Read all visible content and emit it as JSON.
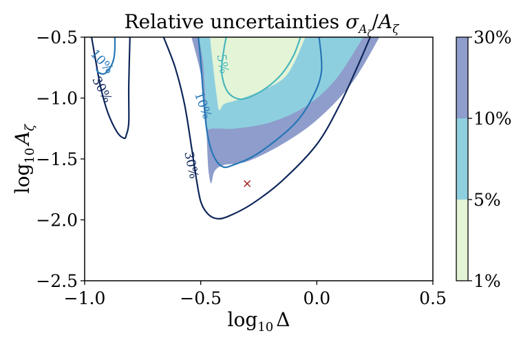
{
  "chart_data": {
    "type": "contour",
    "title": "Relative uncertainties",
    "title_math": {
      "base": "σ",
      "sub": "A",
      "subsub": "ζ",
      "sep": "/",
      "base2": "A",
      "sub2": "ζ"
    },
    "xlabel": {
      "prefix": "log",
      "sub": "10",
      "var": "Δ"
    },
    "ylabel": {
      "prefix": "log",
      "sub": "10",
      "var": "A",
      "varsub": "ζ"
    },
    "xlim": [
      -1.0,
      0.5
    ],
    "ylim": [
      -2.5,
      -0.5
    ],
    "xticks": [
      {
        "value": -1.0,
        "label": "−1.0"
      },
      {
        "value": -0.5,
        "label": "−0.5"
      },
      {
        "value": 0.0,
        "label": "0.0"
      },
      {
        "value": 0.5,
        "label": "0.5"
      }
    ],
    "yticks": [
      {
        "value": -0.5,
        "label": "−0.5"
      },
      {
        "value": -1.0,
        "label": "−1.0"
      },
      {
        "value": -1.5,
        "label": "−1.5"
      },
      {
        "value": -2.0,
        "label": "−2.0"
      },
      {
        "value": -2.5,
        "label": "−2.5"
      }
    ],
    "filled_regions": [
      {
        "name": "10%-30%",
        "color": "#8e9dcb",
        "points": [
          [
            -0.54,
            -0.5
          ],
          [
            -0.5,
            -0.8
          ],
          [
            -0.48,
            -1.1
          ],
          [
            -0.47,
            -1.5
          ],
          [
            -0.465,
            -1.62
          ],
          [
            -0.455,
            -1.7
          ],
          [
            -0.44,
            -1.6
          ],
          [
            -0.4,
            -1.55
          ],
          [
            -0.3,
            -1.52
          ],
          [
            -0.15,
            -1.38
          ],
          [
            0.0,
            -1.18
          ],
          [
            0.15,
            -0.88
          ],
          [
            0.27,
            -0.5
          ]
        ]
      },
      {
        "name": "5%-10%",
        "color": "#8ecfdf",
        "points": [
          [
            -0.51,
            -0.5
          ],
          [
            -0.49,
            -0.7
          ],
          [
            -0.48,
            -1.0
          ],
          [
            -0.475,
            -1.15
          ],
          [
            -0.47,
            -1.25
          ],
          [
            -0.45,
            -1.25
          ],
          [
            -0.42,
            -1.25
          ],
          [
            -0.35,
            -1.25
          ],
          [
            -0.2,
            -1.2
          ],
          [
            -0.05,
            -1.07
          ],
          [
            0.08,
            -0.85
          ],
          [
            0.2,
            -0.5
          ]
        ]
      },
      {
        "name": "1%-5%",
        "color": "#e4f4d6",
        "points": [
          [
            -0.46,
            -0.5
          ],
          [
            -0.45,
            -0.68
          ],
          [
            -0.44,
            -0.85
          ],
          [
            -0.43,
            -1.0
          ],
          [
            -0.42,
            -1.1
          ],
          [
            -0.4,
            -1.05
          ],
          [
            -0.35,
            -1.02
          ],
          [
            -0.25,
            -0.95
          ],
          [
            -0.15,
            -0.85
          ],
          [
            -0.1,
            -0.72
          ],
          [
            -0.05,
            -0.5
          ]
        ]
      }
    ],
    "contours": [
      {
        "level": "30%",
        "color": "#0d2559",
        "points": [
          [
            -0.97,
            -0.5
          ],
          [
            -0.95,
            -0.72
          ],
          [
            -0.93,
            -0.92
          ],
          [
            -0.9,
            -1.12
          ],
          [
            -0.86,
            -1.28
          ],
          [
            -0.83,
            -1.33
          ],
          [
            -0.82,
            -1.3
          ],
          [
            -0.81,
            -1.2
          ],
          [
            -0.81,
            -0.9
          ],
          [
            -0.805,
            -0.5
          ]
        ],
        "labels": [
          {
            "x": -0.925,
            "y": -0.93,
            "text": "30%",
            "rotate": 62
          }
        ]
      },
      {
        "level": "30%",
        "color": "#0d2559",
        "points": [
          [
            -0.66,
            -0.5
          ],
          [
            -0.61,
            -0.75
          ],
          [
            -0.57,
            -1.05
          ],
          [
            -0.54,
            -1.4
          ],
          [
            -0.52,
            -1.65
          ],
          [
            -0.5,
            -1.85
          ],
          [
            -0.47,
            -1.95
          ],
          [
            -0.43,
            -1.99
          ],
          [
            -0.38,
            -1.97
          ],
          [
            -0.28,
            -1.87
          ],
          [
            -0.15,
            -1.68
          ],
          [
            0.0,
            -1.38
          ],
          [
            0.1,
            -1.05
          ],
          [
            0.18,
            -0.72
          ],
          [
            0.23,
            -0.5
          ]
        ],
        "labels": [
          {
            "x": -0.54,
            "y": -1.55,
            "text": "30%",
            "rotate": 78
          }
        ]
      },
      {
        "level": "10%",
        "color": "#2476b6",
        "points": [
          [
            -0.51,
            -0.5
          ],
          [
            -0.5,
            -0.7
          ],
          [
            -0.49,
            -0.95
          ],
          [
            -0.475,
            -1.25
          ],
          [
            -0.45,
            -1.45
          ],
          [
            -0.41,
            -1.56
          ],
          [
            -0.36,
            -1.55
          ],
          [
            -0.25,
            -1.45
          ],
          [
            -0.1,
            -1.22
          ],
          [
            -0.02,
            -1.0
          ],
          [
            0.02,
            -0.78
          ],
          [
            0.01,
            -0.5
          ]
        ],
        "labels": [
          {
            "x": -0.49,
            "y": -1.06,
            "text": "10%",
            "rotate": 70
          }
        ]
      },
      {
        "level": "10%",
        "color": "#2476b6",
        "points": [
          [
            -0.87,
            -0.5
          ],
          [
            -0.87,
            -0.6
          ],
          [
            -0.875,
            -0.68
          ],
          [
            -0.89,
            -0.75
          ],
          [
            -0.915,
            -0.8
          ],
          [
            -0.94,
            -0.79
          ],
          [
            -0.95,
            -0.76
          ]
        ],
        "labels": [
          {
            "x": -0.925,
            "y": -0.7,
            "text": "10%",
            "rotate": 48
          }
        ]
      },
      {
        "level": "5%",
        "color": "#47b6bc",
        "points": [
          [
            -0.39,
            -0.5
          ],
          [
            -0.4,
            -0.6
          ],
          [
            -0.41,
            -0.78
          ],
          [
            -0.39,
            -0.93
          ],
          [
            -0.35,
            -1.0
          ],
          [
            -0.3,
            -1.0
          ],
          [
            -0.22,
            -0.92
          ],
          [
            -0.15,
            -0.8
          ],
          [
            -0.1,
            -0.65
          ],
          [
            -0.07,
            -0.5
          ]
        ],
        "labels": [
          {
            "x": -0.405,
            "y": -0.72,
            "text": "5%",
            "rotate": 80
          }
        ]
      }
    ],
    "marker": {
      "x": -0.3,
      "y": -1.7,
      "symbol": "×",
      "color": "#a01515"
    },
    "colorbar": {
      "levels": [
        {
          "from": "1%",
          "to": "5%",
          "color": "#e4f4d6"
        },
        {
          "from": "5%",
          "to": "10%",
          "color": "#8ecfdf"
        },
        {
          "from": "10%",
          "to": "30%",
          "color": "#8e9dcb"
        }
      ],
      "tick_labels": [
        "1%",
        "5%",
        "10%",
        "30%"
      ]
    }
  }
}
